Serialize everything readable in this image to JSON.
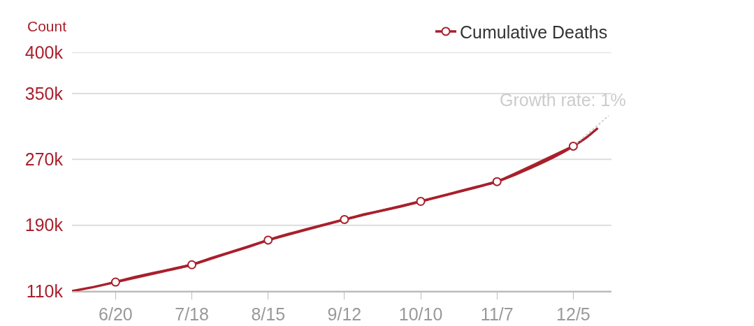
{
  "chart_data": {
    "type": "line",
    "ylabel": "Count",
    "legend": "top right",
    "grid": "y",
    "line_style": "solid",
    "annotations": [
      "Growth rate: 1%"
    ],
    "xlim": [
      "--06-04",
      "--12-19"
    ],
    "xticks": [
      {
        "value": "--06-20",
        "label": "6/20"
      },
      {
        "value": "--07-18",
        "label": "7/18"
      },
      {
        "value": "--08-15",
        "label": "8/15"
      },
      {
        "value": "--09-12",
        "label": "9/12"
      },
      {
        "value": "--10-10",
        "label": "10/10"
      },
      {
        "value": "--11-07",
        "label": "11/7"
      },
      {
        "value": "--12-05",
        "label": "12/5"
      }
    ],
    "ylim": [
      110000,
      400000
    ],
    "yticks": [
      {
        "value": 110000,
        "label": "110k"
      },
      {
        "value": 190000,
        "label": "190k"
      },
      {
        "value": 270000,
        "label": "270k"
      },
      {
        "value": 350000,
        "label": "350k"
      },
      {
        "value": 400000,
        "label": "400k"
      }
    ],
    "series": [
      {
        "name": "Cumulative Deaths",
        "color": "#a8202c",
        "marker": "circle",
        "x": [
          "--06-20",
          "--07-18",
          "--08-15",
          "--09-12",
          "--10-10",
          "--11-07",
          "--12-05"
        ],
        "values": [
          121000,
          142000,
          172000,
          197000,
          219000,
          243000,
          286000
        ]
      },
      {
        "color": "#a8202c",
        "marker": "none",
        "x": [
          "--06-04",
          "--06-12",
          "--06-20",
          "--06-27",
          "--07-04",
          "--07-11",
          "--07-18",
          "--07-25",
          "--08-01",
          "--08-08",
          "--08-15",
          "--08-22",
          "--08-29",
          "--09-05",
          "--09-12",
          "--09-19",
          "--09-26",
          "--10-03",
          "--10-10",
          "--10-17",
          "--10-24",
          "--10-31",
          "--11-07",
          "--11-14",
          "--11-21",
          "--11-28",
          "--12-05",
          "--12-10",
          "--12-14"
        ],
        "values": [
          110000,
          115000,
          121000,
          127000,
          132000,
          137000,
          142000,
          150000,
          157000,
          164000,
          172000,
          179000,
          185000,
          191000,
          197000,
          203000,
          208000,
          213000,
          219000,
          225000,
          231000,
          237000,
          243000,
          252000,
          262000,
          273000,
          286000,
          297000,
          308000
        ]
      },
      {
        "type": "line",
        "color": "#cccccc",
        "line_style": "dotted",
        "marker": "none",
        "x": [
          "--12-05",
          "--12-18"
        ],
        "values": [
          286000,
          323000
        ]
      }
    ]
  }
}
